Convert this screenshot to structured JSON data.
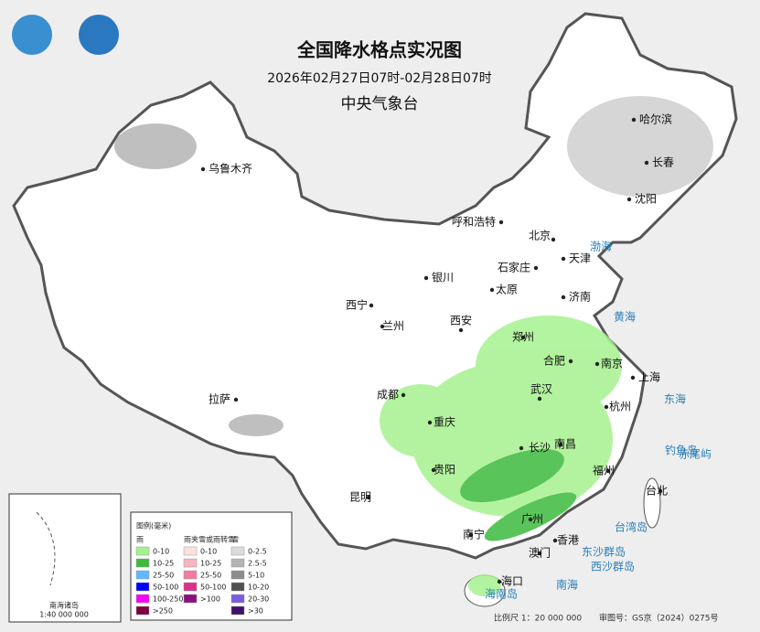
{
  "header": {
    "title": "全国降水格点实况图",
    "date": "2026年02月27日07时-02月28日07时",
    "agency": "中央气象台"
  },
  "cities": [
    "乌鲁木齐",
    "哈尔滨",
    "长春",
    "沈阳",
    "呼和浩特",
    "北京",
    "天津",
    "石家庄",
    "银川",
    "太原",
    "济南",
    "西宁",
    "兰州",
    "西安",
    "郑州",
    "合肥",
    "南京",
    "上海",
    "拉萨",
    "成都",
    "武汉",
    "杭州",
    "重庆",
    "长沙",
    "南昌",
    "贵阳",
    "福州",
    "台北",
    "昆明",
    "广州",
    "南宁",
    "香港",
    "澳门",
    "海口"
  ],
  "seas": [
    "渤海",
    "黄海",
    "东海",
    "南海",
    "台湾岛",
    "钓鱼岛",
    "赤尾屿",
    "东沙群岛",
    "西沙群岛",
    "海南岛"
  ],
  "legend": {
    "title": "图例(毫米)",
    "groups": [
      {
        "label": "雨",
        "items": [
          {
            "label": "0-10",
            "color": "#a6f28f"
          },
          {
            "label": "10-25",
            "color": "#3dba3d"
          },
          {
            "label": "25-50",
            "color": "#61b8ff"
          },
          {
            "label": "50-100",
            "color": "#0000ff"
          },
          {
            "label": "100-250",
            "color": "#fa00fa"
          },
          {
            "label": ">250",
            "color": "#800040"
          }
        ]
      },
      {
        "label": "雨夹雪或雨转雪",
        "items": [
          {
            "label": "0-10",
            "color": "#fde0e0"
          },
          {
            "label": "10-25",
            "color": "#f9b4c0"
          },
          {
            "label": "25-50",
            "color": "#f27ca0"
          },
          {
            "label": "50-100",
            "color": "#d9308a"
          },
          {
            "label": ">100",
            "color": "#8a1080"
          }
        ]
      },
      {
        "label": "雪",
        "items": [
          {
            "label": "0-2.5",
            "color": "#dcdcdc"
          },
          {
            "label": "2.5-5",
            "color": "#b4b4b4"
          },
          {
            "label": "5-10",
            "color": "#8c8c8c"
          },
          {
            "label": "10-20",
            "color": "#505050"
          },
          {
            "label": "20-30",
            "color": "#7a5ce0"
          },
          {
            "label": ">30",
            "color": "#40106a"
          }
        ]
      }
    ]
  },
  "inset": {
    "label": "南海诸岛",
    "scale": "1:40 000 000"
  },
  "footer": {
    "scale": "比例尺 1：20 000 000",
    "approval": "审图号：GS京（2024）0275号"
  }
}
